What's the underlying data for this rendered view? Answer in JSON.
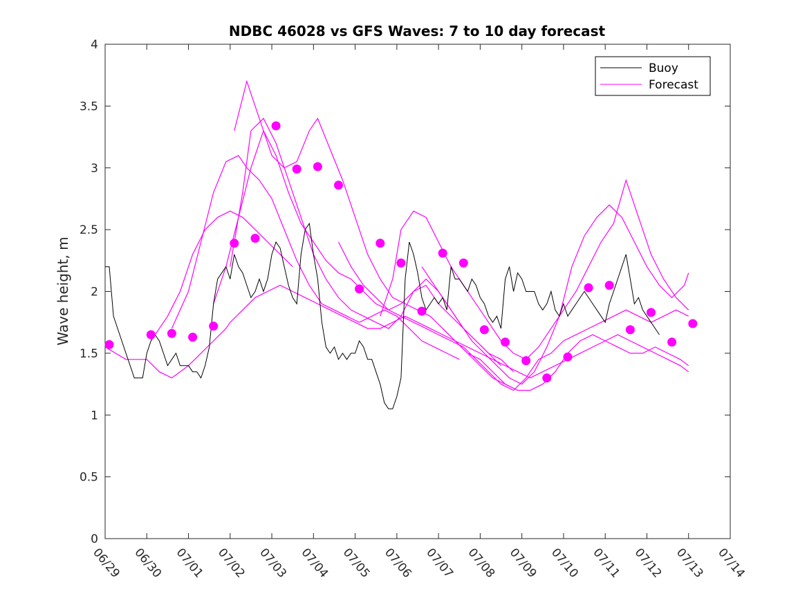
{
  "chart_data": {
    "type": "line",
    "title": "NDBC 46028 vs GFS Waves: 7 to 10 day forecast",
    "xlabel": "",
    "ylabel": "Wave height, m",
    "xlim": [
      "06/29",
      "07/14"
    ],
    "ylim": [
      0,
      4
    ],
    "x_ticks": [
      "06/29",
      "06/30",
      "07/01",
      "07/02",
      "07/03",
      "07/04",
      "07/05",
      "07/06",
      "07/07",
      "07/08",
      "07/09",
      "07/10",
      "07/11",
      "07/12",
      "07/13",
      "07/14"
    ],
    "y_ticks": [
      0,
      0.5,
      1,
      1.5,
      2,
      2.5,
      3,
      3.5,
      4
    ],
    "y_tick_labels": [
      "0",
      "0.5",
      "1",
      "1.5",
      "2",
      "2.5",
      "3",
      "3.5",
      "4"
    ],
    "grid": false,
    "legend": {
      "placement": "top-right",
      "entries": [
        "Buoy",
        "Forecast"
      ]
    },
    "colors": {
      "buoy": "#000000",
      "forecast": "#ff00ff"
    },
    "buoy": {
      "name": "Buoy",
      "x": [
        0,
        0.1,
        0.2,
        0.3,
        0.4,
        0.5,
        0.6,
        0.7,
        0.8,
        0.9,
        1.0,
        1.1,
        1.2,
        1.3,
        1.4,
        1.5,
        1.6,
        1.7,
        1.8,
        1.9,
        2.0,
        2.1,
        2.2,
        2.3,
        2.4,
        2.5,
        2.6,
        2.7,
        2.8,
        2.9,
        3.0,
        3.1,
        3.2,
        3.3,
        3.4,
        3.5,
        3.6,
        3.7,
        3.8,
        3.9,
        4.0,
        4.1,
        4.2,
        4.3,
        4.4,
        4.5,
        4.6,
        4.7,
        4.8,
        4.9,
        5.0,
        5.1,
        5.2,
        5.3,
        5.4,
        5.5,
        5.6,
        5.7,
        5.8,
        5.9,
        6.0,
        6.1,
        6.2,
        6.3,
        6.4,
        6.5,
        6.6,
        6.7,
        6.8,
        6.9,
        7.0,
        7.1,
        7.2,
        7.3,
        7.4,
        7.5,
        7.6,
        7.7,
        7.8,
        7.9,
        8.0,
        8.1,
        8.2,
        8.3,
        8.4,
        8.5,
        8.6,
        8.7,
        8.8,
        8.9,
        9.0,
        9.1,
        9.2,
        9.3,
        9.4,
        9.5,
        9.6,
        9.7,
        9.8,
        9.9,
        10.0,
        10.1,
        10.2,
        10.3,
        10.4,
        10.5,
        10.6,
        10.7,
        10.8,
        10.9,
        11.0,
        11.1,
        11.2,
        11.3,
        11.4,
        11.5,
        11.6,
        11.7,
        11.8,
        11.9,
        12.0,
        12.1,
        12.2,
        12.3,
        12.4,
        12.5,
        12.6,
        12.7,
        12.8,
        12.9,
        13.0,
        13.1,
        13.2,
        13.3
      ],
      "y": [
        2.2,
        2.2,
        1.8,
        1.7,
        1.6,
        1.5,
        1.4,
        1.3,
        1.3,
        1.3,
        1.5,
        1.6,
        1.65,
        1.6,
        1.5,
        1.4,
        1.45,
        1.5,
        1.4,
        1.4,
        1.4,
        1.35,
        1.35,
        1.3,
        1.4,
        1.55,
        1.9,
        2.1,
        2.15,
        2.2,
        2.1,
        2.3,
        2.2,
        2.15,
        2.05,
        1.95,
        2.0,
        2.1,
        2.0,
        2.1,
        2.3,
        2.4,
        2.35,
        2.2,
        2.05,
        1.95,
        1.9,
        2.3,
        2.5,
        2.55,
        2.3,
        2.1,
        1.75,
        1.55,
        1.5,
        1.55,
        1.45,
        1.5,
        1.45,
        1.5,
        1.5,
        1.6,
        1.55,
        1.45,
        1.45,
        1.35,
        1.25,
        1.1,
        1.05,
        1.05,
        1.15,
        1.3,
        2.1,
        2.4,
        2.3,
        2.15,
        1.95,
        1.85,
        1.9,
        1.95,
        1.9,
        1.95,
        1.85,
        2.2,
        2.1,
        2.1,
        2.05,
        2.0,
        2.1,
        2.05,
        1.95,
        1.9,
        1.8,
        1.75,
        1.8,
        1.7,
        2.1,
        2.2,
        2.0,
        2.15,
        2.1,
        2.0,
        2.0,
        2.0,
        1.9,
        1.85,
        1.9,
        2.0,
        1.85,
        1.8,
        1.9,
        1.8,
        1.85,
        1.9,
        1.95,
        2.0,
        1.95,
        1.9,
        1.85,
        1.8,
        1.75,
        1.9,
        2.0,
        2.1,
        2.2,
        2.3,
        2.1,
        1.9,
        1.95,
        1.85,
        1.8,
        1.75,
        1.7,
        1.65
      ]
    },
    "forecast_runs": [
      {
        "x": [
          0,
          0.5,
          1.0,
          1.3,
          1.6,
          2.0,
          2.3,
          2.6,
          2.9,
          3.0,
          3.3,
          3.6,
          3.9,
          4.2,
          4.5,
          4.8,
          5.1,
          5.4,
          5.7,
          6.0,
          6.3,
          6.6,
          6.9,
          7.2,
          7.5,
          7.8,
          8.1,
          8.4,
          8.7,
          9.0,
          9.3,
          9.6,
          9.9,
          10.2,
          10.5,
          10.8,
          11.1,
          11.4,
          11.7,
          12.0,
          12.3,
          12.6,
          12.9,
          13.2,
          13.5,
          13.8,
          14.0
        ],
        "y": [
          1.55,
          1.45,
          1.45,
          1.35,
          1.3,
          1.4,
          1.5,
          1.6,
          1.7,
          1.75,
          1.85,
          1.95,
          2.0,
          2.05,
          2.0,
          1.95,
          1.9,
          1.85,
          1.8,
          1.75,
          1.7,
          1.7,
          1.75,
          1.8,
          1.75,
          1.7,
          1.65,
          1.6,
          1.55,
          1.5,
          1.45,
          1.4,
          1.35,
          1.3,
          1.35,
          1.4,
          1.45,
          1.5,
          1.55,
          1.6,
          1.65,
          1.6,
          1.55,
          1.5,
          1.45,
          1.4,
          1.35
        ]
      },
      {
        "x": [
          1.2,
          1.5,
          1.8,
          2.1,
          2.4,
          2.7,
          3.0,
          3.3,
          3.6,
          3.9,
          4.2,
          4.5
        ],
        "y": [
          1.65,
          1.8,
          2.0,
          2.3,
          2.5,
          2.6,
          2.65,
          2.6,
          2.5,
          2.4,
          2.3,
          2.2
        ]
      },
      {
        "x": [
          1.6,
          2.0,
          2.3,
          2.6,
          2.9,
          3.2,
          3.4,
          3.7,
          4.0,
          4.3,
          4.6,
          4.9,
          5.2,
          5.5,
          5.8,
          6.1,
          6.4,
          6.7,
          7.0,
          7.3,
          7.6,
          7.9,
          8.2,
          8.5
        ],
        "y": [
          1.7,
          2.0,
          2.4,
          2.8,
          3.05,
          3.1,
          3.0,
          2.9,
          2.75,
          2.5,
          2.25,
          2.05,
          1.9,
          1.85,
          1.8,
          1.75,
          1.8,
          1.85,
          1.8,
          1.7,
          1.6,
          1.55,
          1.5,
          1.45
        ]
      },
      {
        "x": [
          2.6,
          2.9,
          3.2,
          3.5,
          3.8,
          4.1,
          4.4,
          4.7,
          5.0,
          5.3,
          5.6,
          5.9,
          6.2,
          6.5,
          6.8,
          7.1,
          7.4,
          7.7,
          8.0,
          8.3,
          8.6,
          8.9,
          9.2,
          9.5
        ],
        "y": [
          1.9,
          2.2,
          2.6,
          3.0,
          3.3,
          3.1,
          2.8,
          2.55,
          2.4,
          2.25,
          2.15,
          2.1,
          2.0,
          1.9,
          1.85,
          1.9,
          2.0,
          2.05,
          1.9,
          1.8,
          1.7,
          1.6,
          1.5,
          1.4
        ]
      },
      {
        "x": [
          3.0,
          3.3,
          3.5,
          3.8,
          4.1,
          4.4,
          4.7,
          5.0,
          5.3,
          5.6,
          5.9,
          6.2,
          6.5,
          6.8,
          7.1,
          7.4,
          7.7,
          8.0,
          8.3,
          8.6,
          8.9,
          9.2,
          9.5,
          9.8
        ],
        "y": [
          2.2,
          2.8,
          3.3,
          3.4,
          3.2,
          2.9,
          2.6,
          2.3,
          2.1,
          1.95,
          1.85,
          1.8,
          1.75,
          1.7,
          1.8,
          2.0,
          2.1,
          2.0,
          1.85,
          1.7,
          1.6,
          1.5,
          1.45,
          1.35
        ]
      },
      {
        "x": [
          3.1,
          3.4,
          3.7,
          4.0,
          4.3,
          4.6,
          4.9,
          5.1,
          5.4,
          5.7,
          6.0,
          6.3,
          6.6,
          6.9,
          7.2,
          7.5,
          7.8,
          8.1,
          8.4,
          8.7,
          9.0,
          9.3,
          9.6,
          9.9
        ],
        "y": [
          3.3,
          3.7,
          3.4,
          3.1,
          3.0,
          3.05,
          3.3,
          3.4,
          3.15,
          2.9,
          2.6,
          2.3,
          2.1,
          1.95,
          1.9,
          1.85,
          1.8,
          1.7,
          1.6,
          1.5,
          1.45,
          1.35,
          1.25,
          1.2
        ]
      },
      {
        "x": [
          5.6,
          5.9,
          6.2,
          6.5,
          6.8,
          7.1,
          7.4,
          7.7,
          8.0,
          8.3,
          8.6,
          8.9,
          9.2,
          9.5,
          9.8,
          10.1,
          10.4,
          10.7,
          11.0,
          11.3,
          11.6,
          11.9,
          12.2,
          12.5,
          12.8,
          13.1,
          13.4,
          13.7,
          14.0
        ],
        "y": [
          2.4,
          2.2,
          2.05,
          1.95,
          1.85,
          1.8,
          1.75,
          1.7,
          1.65,
          1.6,
          1.55,
          1.45,
          1.35,
          1.25,
          1.2,
          1.3,
          1.45,
          1.5,
          1.6,
          1.65,
          1.7,
          1.75,
          1.8,
          1.85,
          1.8,
          1.75,
          1.8,
          1.85,
          1.8
        ]
      },
      {
        "x": [
          6.6,
          6.9,
          7.1,
          7.4,
          7.7,
          8.0,
          8.3,
          8.6,
          8.9,
          9.2,
          9.5,
          9.8,
          10.1,
          10.4,
          10.7,
          11.0,
          11.3,
          11.6,
          11.9,
          12.2,
          12.5,
          12.8,
          13.1,
          13.4,
          13.7,
          14.0
        ],
        "y": [
          1.8,
          2.1,
          2.5,
          2.65,
          2.6,
          2.4,
          2.2,
          2.05,
          1.9,
          1.75,
          1.6,
          1.5,
          1.45,
          1.55,
          1.7,
          1.85,
          2.0,
          2.2,
          2.4,
          2.55,
          2.9,
          2.6,
          2.3,
          2.1,
          1.95,
          1.85
        ]
      },
      {
        "x": [
          7.6,
          7.9,
          8.2,
          8.5,
          8.8,
          9.1,
          9.4,
          9.7,
          10.0,
          10.3,
          10.6,
          10.9,
          11.2,
          11.5,
          11.8,
          12.1,
          12.4,
          12.7,
          13.0,
          13.3,
          13.6,
          13.9,
          14.0
        ],
        "y": [
          2.2,
          2.05,
          1.9,
          1.75,
          1.6,
          1.5,
          1.4,
          1.3,
          1.25,
          1.35,
          1.55,
          1.8,
          2.2,
          2.45,
          2.6,
          2.7,
          2.6,
          2.4,
          2.2,
          2.05,
          1.95,
          2.05,
          2.15
        ]
      },
      {
        "x": [
          8.1,
          8.4,
          8.7,
          9.0,
          9.3,
          9.6,
          9.9,
          10.2,
          10.5,
          10.8,
          11.1,
          11.4,
          11.7,
          12.0,
          12.3,
          12.6,
          12.9,
          13.2,
          13.5,
          13.8,
          14.0
        ],
        "y": [
          1.7,
          1.6,
          1.5,
          1.4,
          1.3,
          1.25,
          1.2,
          1.2,
          1.25,
          1.35,
          1.5,
          1.6,
          1.65,
          1.6,
          1.55,
          1.5,
          1.5,
          1.55,
          1.5,
          1.45,
          1.4
        ]
      }
    ],
    "forecast_markers": {
      "x": [
        0.1,
        1.1,
        1.6,
        2.1,
        2.6,
        3.1,
        3.6,
        4.1,
        4.6,
        5.1,
        5.6,
        6.1,
        6.6,
        7.1,
        7.6,
        8.1,
        8.6,
        9.1,
        9.6,
        10.1,
        10.6,
        11.1,
        11.6,
        12.1,
        12.6,
        13.1,
        13.6,
        14.1
      ],
      "y": [
        1.57,
        1.65,
        1.66,
        1.63,
        1.72,
        2.39,
        2.43,
        3.34,
        2.99,
        3.01,
        2.86,
        2.02,
        2.39,
        2.23,
        1.84,
        2.31,
        2.23,
        1.69,
        1.59,
        1.44,
        1.3,
        1.47,
        2.03,
        2.05,
        1.69,
        1.83,
        1.59,
        1.74
      ]
    }
  }
}
